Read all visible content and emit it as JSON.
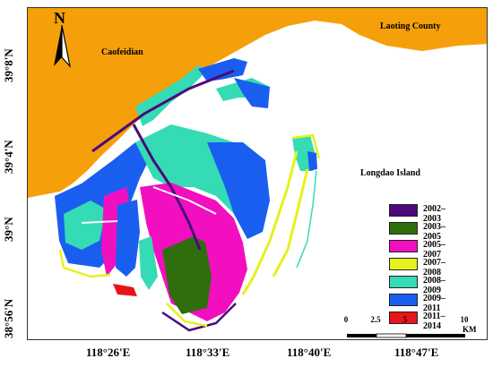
{
  "map": {
    "north_label": "N",
    "places": {
      "caofeidian": "Caofeidian",
      "laoting": "Laoting County",
      "longdao": "Longdao Island"
    },
    "latitudes": [
      "39°8'N",
      "39°4'N",
      "39°N",
      "38°56'N"
    ],
    "longitudes": [
      "118°26'E",
      "118°33'E",
      "118°40'E",
      "118°47'E"
    ],
    "legend": [
      {
        "label": "2002–2003",
        "color": "#4b0a7a"
      },
      {
        "label": "2003–2005",
        "color": "#2f6e0c"
      },
      {
        "label": "2005–2007",
        "color": "#f20fbf"
      },
      {
        "label": "2007–2008",
        "color": "#e6f21d"
      },
      {
        "label": "2008–2009",
        "color": "#35dbb4"
      },
      {
        "label": "2009–2011",
        "color": "#1a5ef0"
      },
      {
        "label": "2011–2014",
        "color": "#e8141a"
      }
    ],
    "scale": {
      "ticks": [
        "0",
        "2.5",
        "5",
        "10"
      ],
      "unit": "KM"
    },
    "colors": {
      "land": "#f5a00a",
      "sea": "#ffffff"
    }
  }
}
